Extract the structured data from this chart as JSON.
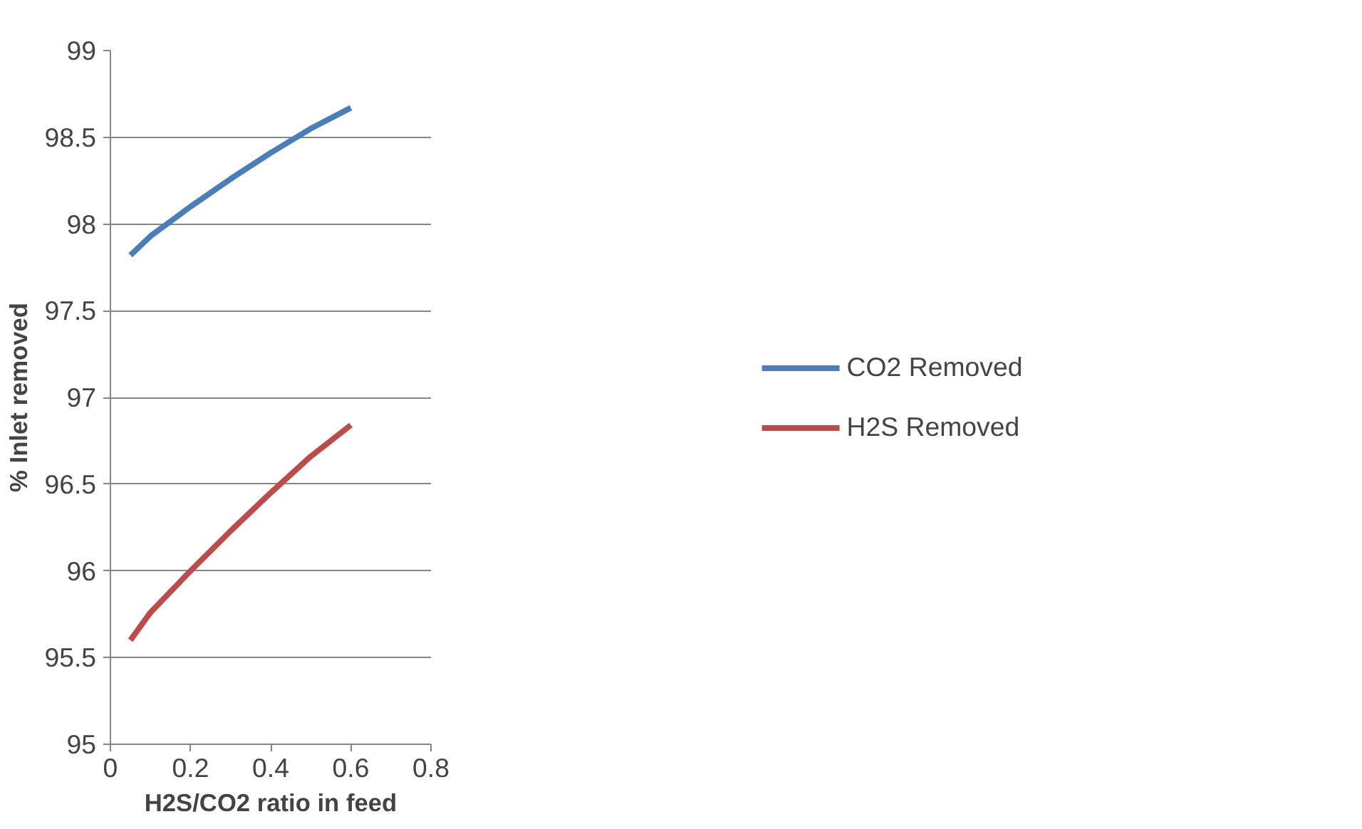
{
  "chart_data": {
    "type": "line",
    "xlabel": "H2S/CO2 ratio in feed",
    "ylabel": "% Inlet removed",
    "x": [
      0.05,
      0.1,
      0.2,
      0.3,
      0.4,
      0.5,
      0.6
    ],
    "series": [
      {
        "name": "CO2 Removed",
        "color": "#4a7ebb",
        "values": [
          97.82,
          97.93,
          98.1,
          98.26,
          98.41,
          98.55,
          98.67
        ]
      },
      {
        "name": "H2S Removed",
        "color": "#be4b48",
        "values": [
          95.6,
          95.76,
          96.0,
          96.23,
          96.45,
          96.66,
          96.84
        ]
      }
    ],
    "xlim": [
      0,
      0.8
    ],
    "xticks": [
      0,
      0.2,
      0.4,
      0.6,
      0.8
    ],
    "ylim": [
      95,
      99
    ],
    "yticks": [
      95,
      95.5,
      96,
      96.5,
      97,
      97.5,
      98,
      98.5,
      99
    ],
    "grid": "y",
    "legend": "right",
    "marker": "none",
    "line_style": "solid"
  }
}
